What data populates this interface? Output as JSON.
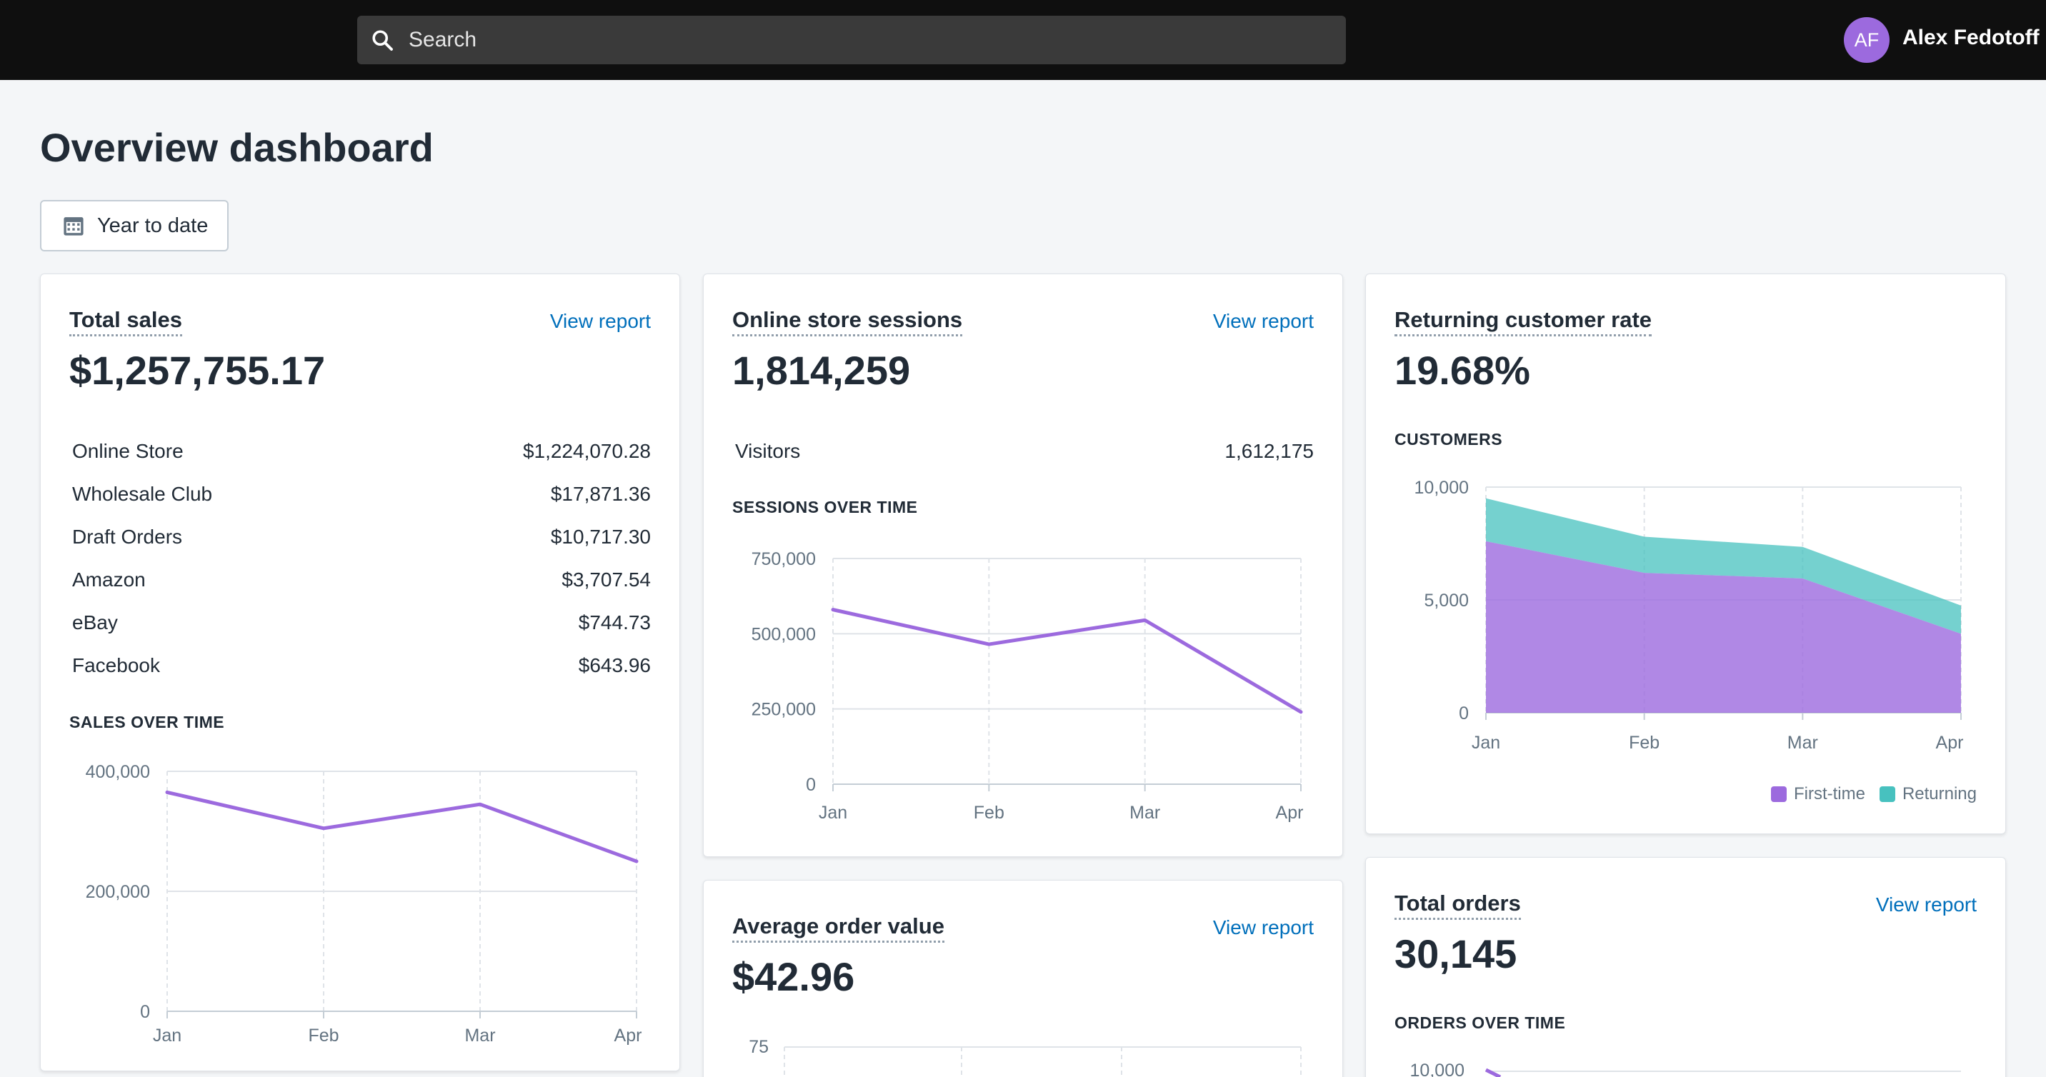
{
  "topbar": {
    "search_placeholder": "Search",
    "avatar_initials": "AF",
    "user_name": "Alex Fedotoff"
  },
  "page": {
    "title": "Overview dashboard",
    "date_range": "Year to date"
  },
  "cards": {
    "total_sales": {
      "title": "Total sales",
      "link": "View report",
      "value": "$1,257,755.17",
      "breakdown": [
        {
          "label": "Online Store",
          "value": "$1,224,070.28"
        },
        {
          "label": "Wholesale Club",
          "value": "$17,871.36"
        },
        {
          "label": "Draft Orders",
          "value": "$10,717.30"
        },
        {
          "label": "Amazon",
          "value": "$3,707.54"
        },
        {
          "label": "eBay",
          "value": "$744.73"
        },
        {
          "label": "Facebook",
          "value": "$643.96"
        }
      ],
      "chart_label": "SALES OVER TIME"
    },
    "sessions": {
      "title": "Online store sessions",
      "link": "View report",
      "value": "1,814,259",
      "visitors_label": "Visitors",
      "visitors_value": "1,612,175",
      "chart_label": "SESSIONS OVER TIME"
    },
    "returning": {
      "title": "Returning customer rate",
      "value": "19.68%",
      "chart_label": "CUSTOMERS",
      "legend": [
        "First-time",
        "Returning"
      ]
    },
    "aov": {
      "title": "Average order value",
      "link": "View report",
      "value": "$42.96"
    },
    "orders": {
      "title": "Total orders",
      "link": "View report",
      "value": "30,145",
      "chart_label": "ORDERS OVER TIME"
    }
  },
  "colors": {
    "purple": "#9c6ade",
    "teal": "#47c1bf",
    "link": "#006fbb"
  },
  "chart_data": [
    {
      "id": "sales",
      "type": "line",
      "categories": [
        "Jan",
        "Feb",
        "Mar",
        "Apr"
      ],
      "series": [
        {
          "values": [
            365000,
            305000,
            345000,
            250000
          ]
        }
      ],
      "ylim": [
        0,
        400000
      ],
      "yticks": [
        0,
        200000,
        400000
      ],
      "ytick_labels": [
        "0",
        "200,000",
        "400,000"
      ],
      "grid": true
    },
    {
      "id": "sessions",
      "type": "line",
      "categories": [
        "Jan",
        "Feb",
        "Mar",
        "Apr"
      ],
      "series": [
        {
          "values": [
            580000,
            465000,
            545000,
            240000
          ]
        }
      ],
      "ylim": [
        0,
        750000
      ],
      "yticks": [
        0,
        250000,
        500000,
        750000
      ],
      "ytick_labels": [
        "0",
        "250,000",
        "500,000",
        "750,000"
      ],
      "grid": true
    },
    {
      "id": "customers",
      "type": "area",
      "stacked": true,
      "categories": [
        "Jan",
        "Feb",
        "Mar",
        "Apr"
      ],
      "series": [
        {
          "name": "First-time",
          "values": [
            7600,
            6200,
            5950,
            3500
          ]
        },
        {
          "name": "Returning",
          "values": [
            1900,
            1600,
            1400,
            1250
          ]
        }
      ],
      "ylim": [
        0,
        10000
      ],
      "yticks": [
        0,
        5000,
        10000
      ],
      "ytick_labels": [
        "0",
        "5,000",
        "10,000"
      ],
      "grid": true,
      "legend": "bottom-right"
    },
    {
      "id": "aov",
      "type": "line",
      "ytick_labels": [
        "75"
      ],
      "partial": true
    },
    {
      "id": "orders",
      "type": "line",
      "ytick_labels": [
        "10,000"
      ],
      "partial": true
    }
  ]
}
